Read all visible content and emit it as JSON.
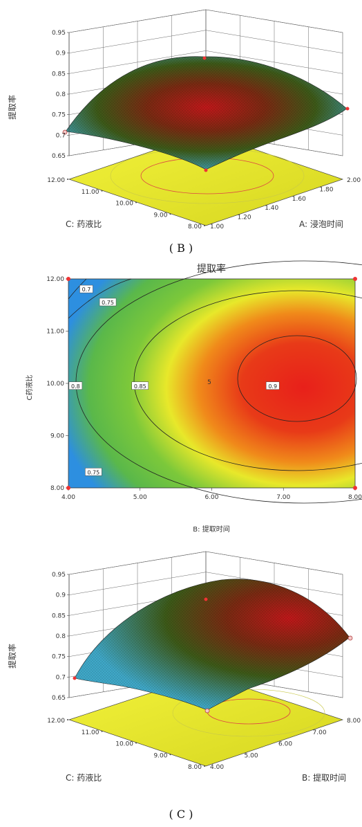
{
  "captions": {
    "top": "( B )",
    "bottom": "( C )"
  },
  "chart_data": [
    {
      "type": "surface",
      "zlabel": "提取率",
      "z_ticks": [
        "0.65",
        "0.7",
        "0.75",
        "0.8",
        "0.85",
        "0.9",
        "0.95"
      ],
      "xlabel": "A: 浸泡时间",
      "x_ticks": [
        "1.00",
        "1.20",
        "1.40",
        "1.60",
        "1.80",
        "2.00"
      ],
      "ylabel": "C: 药液比",
      "y_ticks": [
        "8.00",
        "9.00",
        "10.00",
        "11.00",
        "12.00"
      ],
      "zlim": [
        0.65,
        0.95
      ],
      "colors": {
        "low": "#3fb7e6",
        "mid": "#4a6a1a",
        "high": "#b01010",
        "floor": "#e6e62a"
      }
    },
    {
      "type": "contour",
      "title": "提取率",
      "xlabel": "B: 提取时间",
      "ylabel": "C药液比",
      "x_ticks": [
        "4.00",
        "5.00",
        "6.00",
        "7.00",
        "8.00"
      ],
      "y_ticks": [
        "8.00",
        "9.00",
        "10.00",
        "11.00",
        "12.00"
      ],
      "xlim": [
        4,
        8
      ],
      "ylim": [
        8,
        12
      ],
      "contour_levels": [
        "0.7",
        "0.75",
        "0.8",
        "0.85",
        "0.9"
      ],
      "center_label": "5",
      "center": [
        7.3,
        9.8
      ],
      "colors": {
        "low": "#2d8fe0",
        "green": "#6ac23a",
        "yellow": "#e8e82a",
        "orange": "#f08a1a",
        "high": "#e8201a"
      }
    },
    {
      "type": "surface",
      "zlabel": "提取率",
      "z_ticks": [
        "0.65",
        "0.7",
        "0.75",
        "0.8",
        "0.85",
        "0.9",
        "0.95"
      ],
      "xlabel": "B: 提取时间",
      "x_ticks": [
        "4.00",
        "5.00",
        "6.00",
        "7.00",
        "8.00"
      ],
      "ylabel": "C: 药液比",
      "y_ticks": [
        "8.00",
        "9.00",
        "10.00",
        "11.00",
        "12.00"
      ],
      "zlim": [
        0.65,
        0.95
      ],
      "colors": {
        "low": "#3fb7e6",
        "mid": "#4a6a1a",
        "high": "#b01010",
        "floor": "#e6e62a"
      }
    }
  ]
}
